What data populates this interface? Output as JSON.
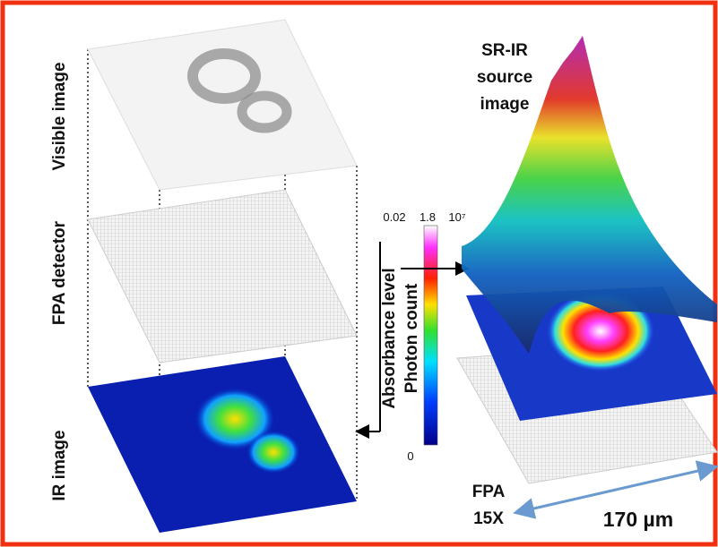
{
  "layers": {
    "visible": "Visible image",
    "fpa": "FPA detector",
    "ir": "IR image"
  },
  "source": {
    "line1": "SR-IR",
    "line2": "source",
    "line3": "image"
  },
  "colorbar": {
    "absorbance_min": "0.02",
    "absorbance_max": "1.8",
    "photon_max": "10⁷",
    "photon_min": "0",
    "absorbance_label": "Absorbance level",
    "photon_label": "Photon count"
  },
  "fpa": {
    "name": "FPA",
    "magnification": "15X",
    "size": "170 µm"
  }
}
